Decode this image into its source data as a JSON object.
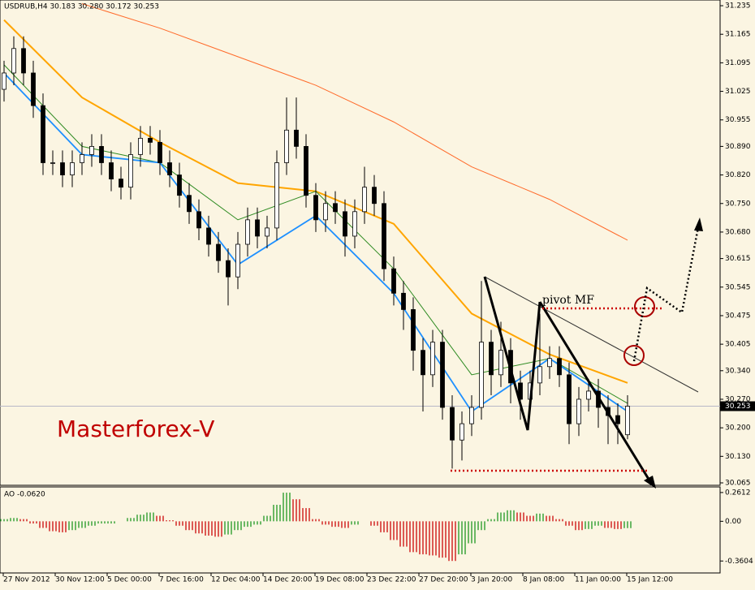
{
  "chart_data": {
    "type": "candlestick",
    "title": "USDRUB,H4  30.183 30.280 30.172 30.253",
    "annotation": "Masterforex-V",
    "pivot_label": "pivot MF",
    "open": [
      31.03,
      31.07,
      31.13,
      31.07,
      30.99,
      30.85,
      30.85,
      30.82,
      30.85,
      30.87,
      30.89,
      30.85,
      30.81,
      30.79,
      30.87,
      30.91,
      30.9,
      30.85,
      30.82,
      30.77,
      30.73,
      30.69,
      30.65,
      30.61,
      30.57,
      30.65,
      30.71,
      30.67,
      30.69,
      30.85,
      30.93,
      30.89,
      30.77,
      30.71,
      30.75,
      30.73,
      30.67,
      30.73,
      30.79,
      30.75,
      30.59,
      30.53,
      30.49,
      30.39,
      30.33,
      30.41,
      30.25,
      30.17,
      30.21,
      30.25,
      30.41,
      30.33,
      30.39,
      30.31,
      30.27,
      30.31,
      30.35,
      30.37,
      30.33,
      30.21,
      30.27,
      30.29,
      30.25,
      30.23,
      30.183
    ],
    "high": [
      31.1,
      31.16,
      31.16,
      31.1,
      31.02,
      30.88,
      30.88,
      30.88,
      30.9,
      30.92,
      30.92,
      30.88,
      30.84,
      30.9,
      30.94,
      30.94,
      30.93,
      30.88,
      30.85,
      30.8,
      30.76,
      30.72,
      30.68,
      30.64,
      30.68,
      30.74,
      30.74,
      30.72,
      30.88,
      31.01,
      31.01,
      30.92,
      30.8,
      30.78,
      30.78,
      30.76,
      30.76,
      30.84,
      30.82,
      30.78,
      30.62,
      30.56,
      30.52,
      30.42,
      30.44,
      30.44,
      30.28,
      30.24,
      30.28,
      30.56,
      30.44,
      30.46,
      30.42,
      30.34,
      30.34,
      30.48,
      30.4,
      30.4,
      30.36,
      30.3,
      30.32,
      30.32,
      30.28,
      30.26,
      30.28
    ],
    "low": [
      31.0,
      31.04,
      31.04,
      30.96,
      30.82,
      30.82,
      30.79,
      30.79,
      30.82,
      30.84,
      30.82,
      30.78,
      30.76,
      30.76,
      30.84,
      30.87,
      30.82,
      30.79,
      30.74,
      30.7,
      30.66,
      30.62,
      30.58,
      30.5,
      30.54,
      30.62,
      30.64,
      30.64,
      30.66,
      30.82,
      30.86,
      30.74,
      30.68,
      30.68,
      30.7,
      30.62,
      30.64,
      30.7,
      30.72,
      30.56,
      30.5,
      30.44,
      30.34,
      30.24,
      30.3,
      30.22,
      30.1,
      30.12,
      30.18,
      30.22,
      30.28,
      30.3,
      30.26,
      30.22,
      30.24,
      30.28,
      30.32,
      30.3,
      30.16,
      30.18,
      30.24,
      30.2,
      30.16,
      30.16,
      30.172
    ],
    "close": [
      31.07,
      31.13,
      31.07,
      30.99,
      30.85,
      30.85,
      30.82,
      30.85,
      30.87,
      30.89,
      30.85,
      30.81,
      30.79,
      30.87,
      30.91,
      30.9,
      30.85,
      30.82,
      30.77,
      30.73,
      30.69,
      30.65,
      30.61,
      30.57,
      30.65,
      30.71,
      30.67,
      30.69,
      30.85,
      30.93,
      30.89,
      30.77,
      30.71,
      30.75,
      30.73,
      30.67,
      30.73,
      30.79,
      30.75,
      30.59,
      30.53,
      30.49,
      30.39,
      30.33,
      30.41,
      30.25,
      30.17,
      30.21,
      30.25,
      30.41,
      30.33,
      30.39,
      30.31,
      30.27,
      30.31,
      30.35,
      30.37,
      30.33,
      30.21,
      30.27,
      30.29,
      30.25,
      30.23,
      30.21,
      30.253
    ],
    "moving_averages": [
      {
        "color": "#ff6a2a",
        "x": [
          0,
          8,
          16,
          24,
          32,
          40,
          48,
          56,
          64
        ],
        "values": [
          null,
          31.24,
          31.18,
          31.11,
          31.04,
          30.95,
          30.84,
          30.76,
          30.66
        ]
      },
      {
        "color": "#ffa500",
        "x": [
          0,
          8,
          16,
          24,
          32,
          40,
          48,
          56,
          64
        ],
        "values": [
          31.2,
          31.01,
          30.9,
          30.8,
          30.78,
          30.7,
          30.48,
          30.38,
          30.31
        ]
      },
      {
        "color": "#2e8b22",
        "x": [
          0,
          8,
          16,
          24,
          32,
          40,
          48,
          56,
          64
        ],
        "values": [
          31.09,
          30.89,
          30.85,
          30.71,
          30.78,
          30.59,
          30.33,
          30.37,
          30.26
        ]
      },
      {
        "color": "#1e90ff",
        "x": [
          0,
          8,
          16,
          24,
          32,
          40,
          48,
          56,
          64
        ],
        "values": [
          31.07,
          30.87,
          30.85,
          30.6,
          30.72,
          30.53,
          30.24,
          30.37,
          30.24
        ]
      }
    ],
    "ylim": [
      30.059,
      31.249
    ],
    "yticks": [
      31.235,
      31.165,
      31.095,
      31.025,
      30.955,
      {
        "value": 30.89,
        "label": "30.890"
      },
      {
        "value": 30.82,
        "label": "30.820"
      },
      {
        "value": 30.75,
        "label": "30.750"
      },
      {
        "value": 30.68,
        "label": "30.680"
      },
      30.615,
      30.545,
      30.475,
      30.405,
      {
        "value": 30.34,
        "label": "30.340"
      },
      {
        "value": 30.27,
        "label": "30.270"
      },
      {
        "value": 30.2,
        "label": "30.200"
      },
      {
        "value": 30.13,
        "label": "30.130"
      },
      30.065
    ],
    "xtick_labels": [
      "27 Nov 2012",
      "30 Nov 12:00",
      "5 Dec 00:00",
      "7 Dec 16:00",
      "12 Dec 04:00",
      "14 Dec 20:00",
      "19 Dec 08:00",
      "23 Dec 22:00",
      "27 Dec 20:00",
      "3 Jan 20:00",
      "8 Jan 08:00",
      "11 Jan 00:00",
      "15 Jan 12:00"
    ],
    "indicator": {
      "title": "AO -0.0620",
      "values": [
        0.02,
        0.03,
        0.02,
        -0.02,
        -0.06,
        -0.09,
        -0.1,
        -0.08,
        -0.06,
        -0.04,
        -0.02,
        -0.02,
        0.0,
        0.03,
        0.06,
        0.08,
        0.05,
        0.01,
        -0.04,
        -0.08,
        -0.11,
        -0.13,
        -0.14,
        -0.12,
        -0.08,
        -0.05,
        -0.03,
        0.05,
        0.15,
        0.26,
        0.2,
        0.12,
        0.02,
        -0.03,
        -0.05,
        -0.06,
        -0.03,
        0.0,
        -0.04,
        -0.1,
        -0.17,
        -0.23,
        -0.28,
        -0.3,
        -0.31,
        -0.33,
        -0.36,
        -0.3,
        -0.2,
        -0.08,
        0.02,
        0.08,
        0.1,
        0.08,
        0.05,
        0.07,
        0.05,
        0.02,
        -0.04,
        -0.08,
        -0.07,
        -0.04,
        -0.06,
        -0.07,
        -0.062
      ],
      "ylim": [
        -0.469,
        0.312
      ],
      "yticks": [
        0.2612,
        {
          "value": 0,
          "label": "0.00"
        },
        -0.3604
      ],
      "up_color": "#2e9e2e",
      "down_color": "#d01818"
    }
  }
}
